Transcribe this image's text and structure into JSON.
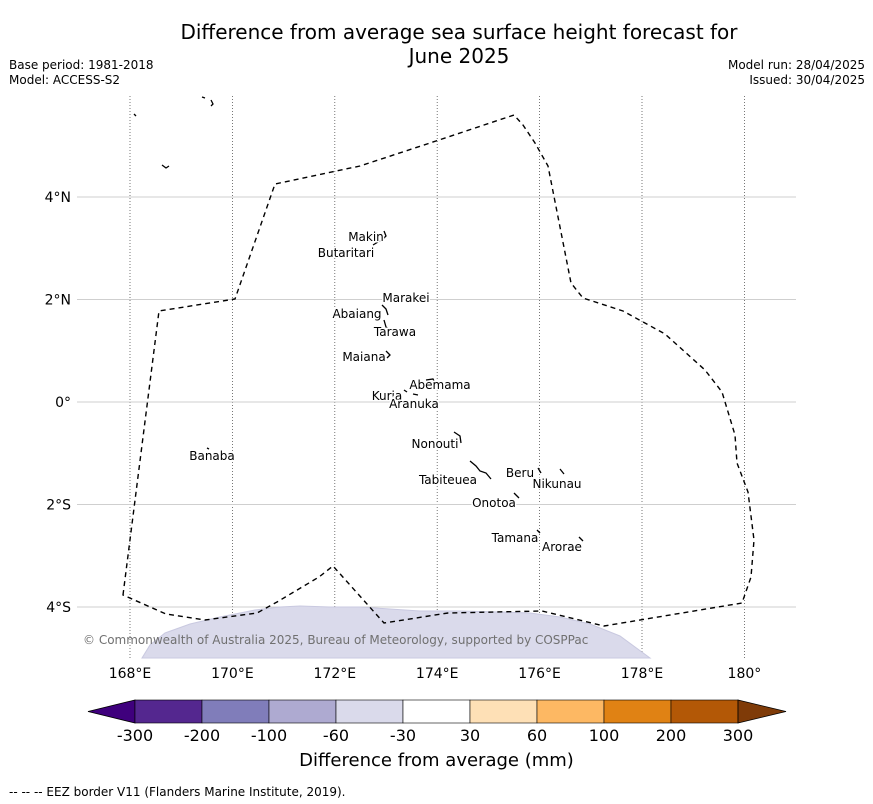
{
  "title_line1": "Difference from average sea surface height forecast for",
  "title_line2": "June 2025",
  "meta_left": [
    "Base period: 1981-2018",
    "Model: ACCESS-S2"
  ],
  "meta_right": [
    "Model run: 28/04/2025",
    "Issued: 30/04/2025"
  ],
  "map": {
    "x_ticks": [
      "168°E",
      "170°E",
      "172°E",
      "174°E",
      "176°E",
      "178°E",
      "180°"
    ],
    "x_tick_values": [
      168,
      170,
      172,
      174,
      176,
      178,
      180
    ],
    "y_ticks": [
      "4°N",
      "2°N",
      "0°",
      "2°S",
      "4°S"
    ],
    "y_tick_values": [
      4,
      2,
      0,
      -2,
      -4
    ],
    "xlim": [
      167.1,
      181.0
    ],
    "ylim": [
      -5.0,
      5.9
    ],
    "gridlines": true,
    "copyright": "© Commonwealth of Australia 2025, Bureau of Meteorology, supported by COSPPac",
    "islands": [
      {
        "name": "Makin",
        "lon": 172.9,
        "lat": 3.2
      },
      {
        "name": "Butaritari",
        "lon": 172.7,
        "lat": 2.9
      },
      {
        "name": "Marakei",
        "lon": 173.35,
        "lat": 2.0
      },
      {
        "name": "Abaiang",
        "lon": 172.95,
        "lat": 1.8
      },
      {
        "name": "Tarawa",
        "lon": 173.0,
        "lat": 1.45
      },
      {
        "name": "Maiana",
        "lon": 173.0,
        "lat": 1.0
      },
      {
        "name": "Abemama",
        "lon": 173.85,
        "lat": 0.4
      },
      {
        "name": "Kuria",
        "lon": 173.4,
        "lat": 0.2
      },
      {
        "name": "Aranuka",
        "lon": 173.6,
        "lat": 0.15
      },
      {
        "name": "Nonouti",
        "lon": 174.4,
        "lat": -0.65
      },
      {
        "name": "Banaba",
        "lon": 169.5,
        "lat": -0.85
      },
      {
        "name": "Tabiteuea",
        "lon": 174.85,
        "lat": -1.3
      },
      {
        "name": "Beru",
        "lon": 176.0,
        "lat": -1.35
      },
      {
        "name": "Nikunau",
        "lon": 176.45,
        "lat": -1.35
      },
      {
        "name": "Onotoa",
        "lon": 175.55,
        "lat": -1.8
      },
      {
        "name": "Tamana",
        "lon": 176.0,
        "lat": -2.5
      },
      {
        "name": "Arorae",
        "lon": 176.8,
        "lat": -2.65
      }
    ]
  },
  "colorbar": {
    "labels": [
      "-300",
      "-200",
      "-100",
      "-60",
      "-30",
      "30",
      "60",
      "100",
      "200",
      "300"
    ],
    "colors": [
      "#3f007d",
      "#54278f",
      "#807dba",
      "#aeaad1",
      "#dadaeb",
      "#ffffff",
      "#fee0b6",
      "#fdb863",
      "#e08214",
      "#b35806",
      "#7f3b08"
    ],
    "title": "Difference from average (mm)"
  },
  "footnote": "--  --  -- EEZ border V11 (Flanders Marine Institute, 2019)."
}
